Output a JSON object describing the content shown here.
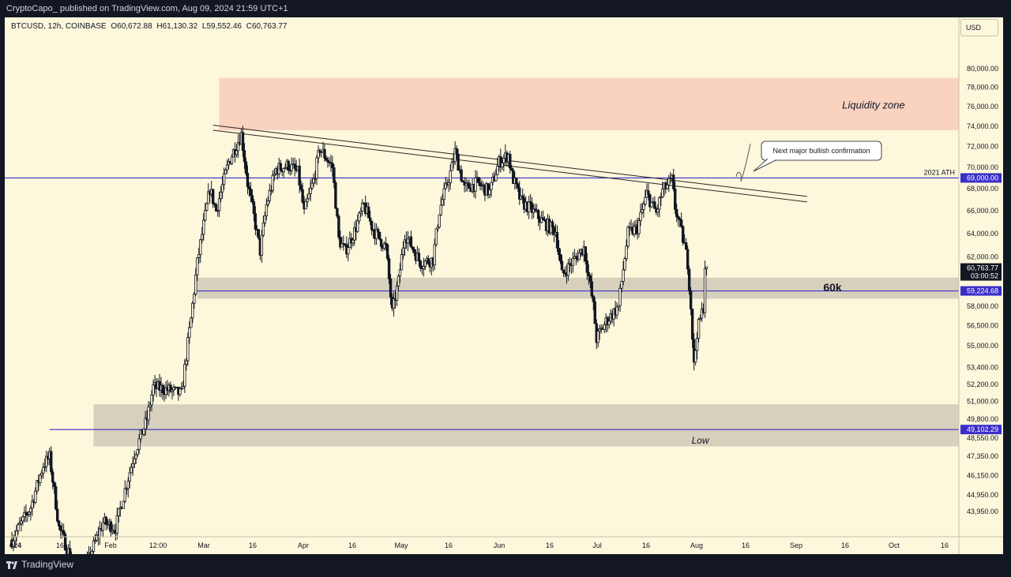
{
  "header": {
    "publisher_line": "CryptoCapo_ published on TradingView.com, Aug 09, 2024 21:59 UTC+1"
  },
  "symbol_bar": {
    "symbol": "BTCUSD, 12h, COINBASE",
    "open": "O60,672.88",
    "high": "H61,130.32",
    "low": "L59,552.46",
    "close": "C60,763.77"
  },
  "currency_button": "USD",
  "footer": {
    "brand": "TradingView"
  },
  "colors": {
    "background": "#fdf7dc",
    "candle": "#131722",
    "liquidity_zone": "#f9d2c0",
    "support_zone": "#d6d0bd",
    "horizontal_line": "#3a2fc8",
    "trendline": "#2a2620"
  },
  "chart_data": {
    "type": "candlestick",
    "timeframe": "12h",
    "ylim": [
      43300,
      81800
    ],
    "y_ticks": [
      "80,000.00",
      "78,000.00",
      "76,000.00",
      "74,000.00",
      "72,000.00",
      "70,000.00",
      "68,000.00",
      "66,000.00",
      "64,000.00",
      "62,000.00",
      "58,000.00",
      "56,500.00",
      "55,000.00",
      "53,400.00",
      "52,200.00",
      "51,000.00",
      "49,800.00",
      "48,550.00",
      "47,350.00",
      "46,150.00",
      "44,950.00",
      "43,950.00"
    ],
    "x_labels": [
      "024",
      "16",
      "Feb",
      "12:00",
      "Mar",
      "16",
      "Apr",
      "16",
      "May",
      "16",
      "Jun",
      "16",
      "Jul",
      "16",
      "Aug",
      "16",
      "Sep",
      "16",
      "Oct",
      "16"
    ],
    "price_badges": [
      {
        "value": "69,000.00",
        "price": 69000,
        "style": "line"
      },
      {
        "value": "59,224.68",
        "price": 59224.68,
        "style": "line"
      },
      {
        "value": "49,102.29",
        "price": 49102.29,
        "style": "line"
      }
    ],
    "current_price": {
      "value": "60,763.77",
      "countdown": "03:00:52",
      "price": 60763.77
    },
    "horizontal_lines": [
      {
        "price": 69000,
        "label": "2021 ATH"
      },
      {
        "price": 59224.68,
        "label": ""
      },
      {
        "price": 49102.29,
        "label": ""
      }
    ],
    "zones": [
      {
        "name": "liquidity-zone",
        "label": "Liquidity zone",
        "from_price": 73600,
        "to_price": 79000,
        "start": "2024-03-07"
      },
      {
        "name": "support-zone-60k",
        "label": "60k",
        "from_price": 58600,
        "to_price": 60300,
        "start": "2024-02-29"
      },
      {
        "name": "support-zone-low",
        "label": "Low",
        "from_price": 48000,
        "to_price": 50800,
        "start": "2024-01-27"
      }
    ],
    "trendlines": [
      {
        "from_date": "2024-03-05",
        "from_price": 74100,
        "to_date": "2024-09-10",
        "to_price": 67300
      },
      {
        "from_date": "2024-03-05",
        "from_price": 73600,
        "to_date": "2024-09-10",
        "to_price": 66800
      }
    ],
    "annotation": {
      "text": "Next major bullish confirmation"
    },
    "anchor_points": [
      [
        "2024-01-01",
        42300
      ],
      [
        "2024-01-07",
        44200
      ],
      [
        "2024-01-11",
        46800
      ],
      [
        "2024-01-13",
        47300
      ],
      [
        "2024-01-16",
        43000
      ],
      [
        "2024-01-23",
        39800
      ],
      [
        "2024-01-26",
        41500
      ],
      [
        "2024-01-30",
        43300
      ],
      [
        "2024-02-03",
        43000
      ],
      [
        "2024-02-09",
        47500
      ],
      [
        "2024-02-13",
        49800
      ],
      [
        "2024-02-15",
        52000
      ],
      [
        "2024-02-20",
        51800
      ],
      [
        "2024-02-24",
        51500
      ],
      [
        "2024-02-27",
        57000
      ],
      [
        "2024-02-29",
        61500
      ],
      [
        "2024-03-04",
        68000
      ],
      [
        "2024-03-06",
        66000
      ],
      [
        "2024-03-10",
        70500
      ],
      [
        "2024-03-14",
        73200
      ],
      [
        "2024-03-16",
        68500
      ],
      [
        "2024-03-20",
        62500
      ],
      [
        "2024-03-22",
        66500
      ],
      [
        "2024-03-25",
        69800
      ],
      [
        "2024-03-29",
        70200
      ],
      [
        "2024-04-01",
        69500
      ],
      [
        "2024-04-03",
        65800
      ],
      [
        "2024-04-06",
        68800
      ],
      [
        "2024-04-08",
        71800
      ],
      [
        "2024-04-12",
        70000
      ],
      [
        "2024-04-14",
        63500
      ],
      [
        "2024-04-16",
        62500
      ],
      [
        "2024-04-19",
        64200
      ],
      [
        "2024-04-22",
        66500
      ],
      [
        "2024-04-25",
        64300
      ],
      [
        "2024-04-29",
        62800
      ],
      [
        "2024-05-01",
        57500
      ],
      [
        "2024-05-03",
        60000
      ],
      [
        "2024-05-05",
        64000
      ],
      [
        "2024-05-10",
        61500
      ],
      [
        "2024-05-14",
        61800
      ],
      [
        "2024-05-16",
        66000
      ],
      [
        "2024-05-20",
        70000
      ],
      [
        "2024-05-21",
        71500
      ],
      [
        "2024-05-24",
        68000
      ],
      [
        "2024-05-28",
        68500
      ],
      [
        "2024-06-01",
        67700
      ],
      [
        "2024-06-04",
        70500
      ],
      [
        "2024-06-07",
        71200
      ],
      [
        "2024-06-08",
        69300
      ],
      [
        "2024-06-11",
        66800
      ],
      [
        "2024-06-14",
        66200
      ],
      [
        "2024-06-18",
        65000
      ],
      [
        "2024-06-22",
        64200
      ],
      [
        "2024-06-24",
        60500
      ],
      [
        "2024-06-27",
        61500
      ],
      [
        "2024-07-01",
        62800
      ],
      [
        "2024-07-04",
        58000
      ],
      [
        "2024-07-05",
        55500
      ],
      [
        "2024-07-08",
        56800
      ],
      [
        "2024-07-12",
        58000
      ],
      [
        "2024-07-15",
        64000
      ],
      [
        "2024-07-18",
        64500
      ],
      [
        "2024-07-21",
        67500
      ],
      [
        "2024-07-24",
        65800
      ],
      [
        "2024-07-26",
        67800
      ],
      [
        "2024-07-29",
        68800
      ],
      [
        "2024-07-30",
        66300
      ],
      [
        "2024-08-02",
        63000
      ],
      [
        "2024-08-03",
        61500
      ],
      [
        "2024-08-04",
        58000
      ],
      [
        "2024-08-05",
        53500
      ],
      [
        "2024-08-06",
        56000
      ],
      [
        "2024-08-08",
        58000
      ],
      [
        "2024-08-08 12:00",
        61300
      ],
      [
        "2024-08-09",
        60764
      ]
    ]
  }
}
